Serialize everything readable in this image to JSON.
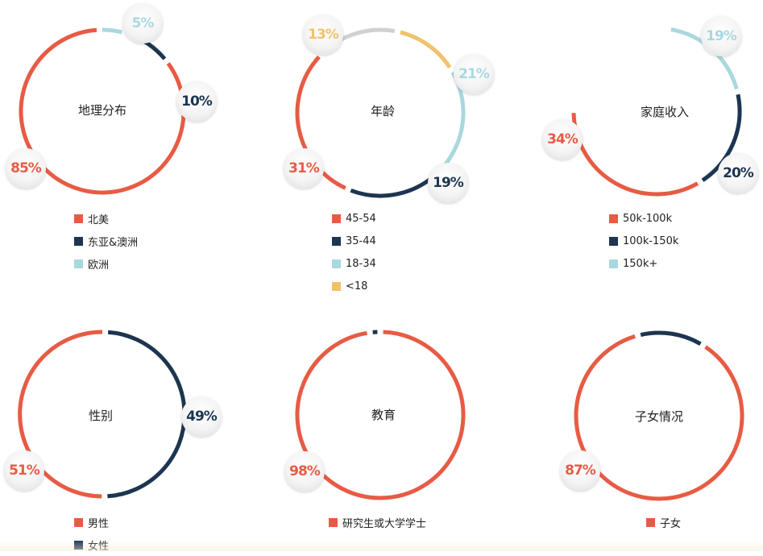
{
  "colors": {
    "red": "#e75b44",
    "navy": "#1d3550",
    "lightblue": "#a9d8df",
    "yellow": "#f0c26a",
    "gray": "#d0d0d0"
  },
  "chart_data": [
    {
      "type": "pie",
      "title": "地理分布",
      "series": [
        {
          "name": "北美",
          "value": 85,
          "label": "85%",
          "color": "#e75b44"
        },
        {
          "name": "东亚&澳洲",
          "value": 10,
          "label": "10%",
          "color": "#1d3550"
        },
        {
          "name": "欧洲",
          "value": 5,
          "label": "5%",
          "color": "#a9d8df"
        }
      ]
    },
    {
      "type": "pie",
      "title": "年龄",
      "series": [
        {
          "name": "45-54",
          "value": 31,
          "label": "31%",
          "color": "#e75b44"
        },
        {
          "name": "35-44",
          "value": 19,
          "label": "19%",
          "color": "#1d3550"
        },
        {
          "name": "18-34",
          "value": 21,
          "label": "21%",
          "color": "#a9d8df"
        },
        {
          "name": "<18",
          "value": 13,
          "label": "13%",
          "color": "#f0c26a"
        }
      ]
    },
    {
      "type": "pie",
      "title": "家庭收入",
      "series": [
        {
          "name": "50k-100k",
          "value": 34,
          "label": "34%",
          "color": "#e75b44"
        },
        {
          "name": "100k-150k",
          "value": 20,
          "label": "20%",
          "color": "#1d3550"
        },
        {
          "name": "150k+",
          "value": 19,
          "label": "19%",
          "color": "#a9d8df"
        }
      ]
    },
    {
      "type": "pie",
      "title": "性别",
      "series": [
        {
          "name": "男性",
          "value": 51,
          "label": "51%",
          "color": "#e75b44"
        },
        {
          "name": "女性",
          "value": 49,
          "label": "49%",
          "color": "#1d3550"
        }
      ]
    },
    {
      "type": "pie",
      "title": "教育",
      "series": [
        {
          "name": "研究生或大学学士",
          "value": 98,
          "label": "98%",
          "color": "#e75b44"
        }
      ]
    },
    {
      "type": "pie",
      "title": "子女情况",
      "series": [
        {
          "name": "子女",
          "value": 87,
          "label": "87%",
          "color": "#e75b44"
        }
      ]
    }
  ]
}
